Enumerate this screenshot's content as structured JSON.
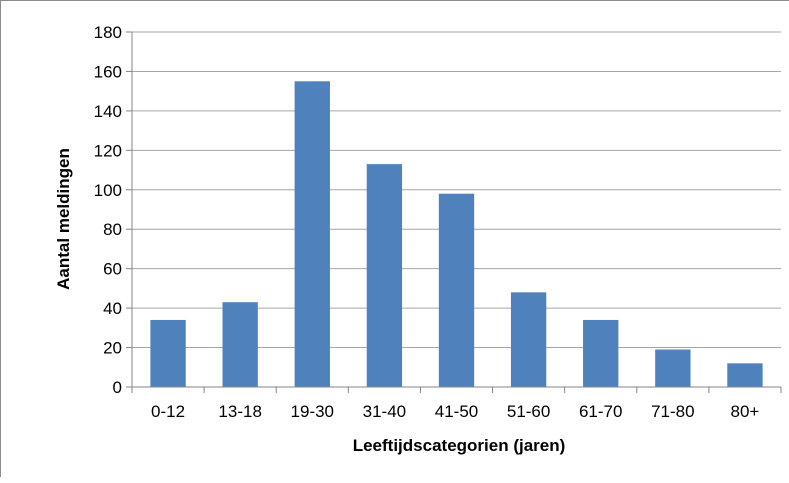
{
  "chart_data": {
    "type": "bar",
    "categories": [
      "0-12",
      "13-18",
      "19-30",
      "31-40",
      "41-50",
      "51-60",
      "61-70",
      "71-80",
      "80+"
    ],
    "series": [
      {
        "values": [
          34,
          43,
          155,
          113,
          98,
          48,
          34,
          19,
          12
        ]
      }
    ],
    "xlabel": "Leeftijdscategorien (jaren)",
    "ylabel": "Aantal meldingen",
    "ylim": [
      0,
      180
    ],
    "yticks": [
      0,
      20,
      40,
      60,
      80,
      100,
      120,
      140,
      160,
      180
    ],
    "grid": true,
    "legend": "none",
    "bar_color": "#4f81bd",
    "grid_color": "#a6a6a6"
  }
}
